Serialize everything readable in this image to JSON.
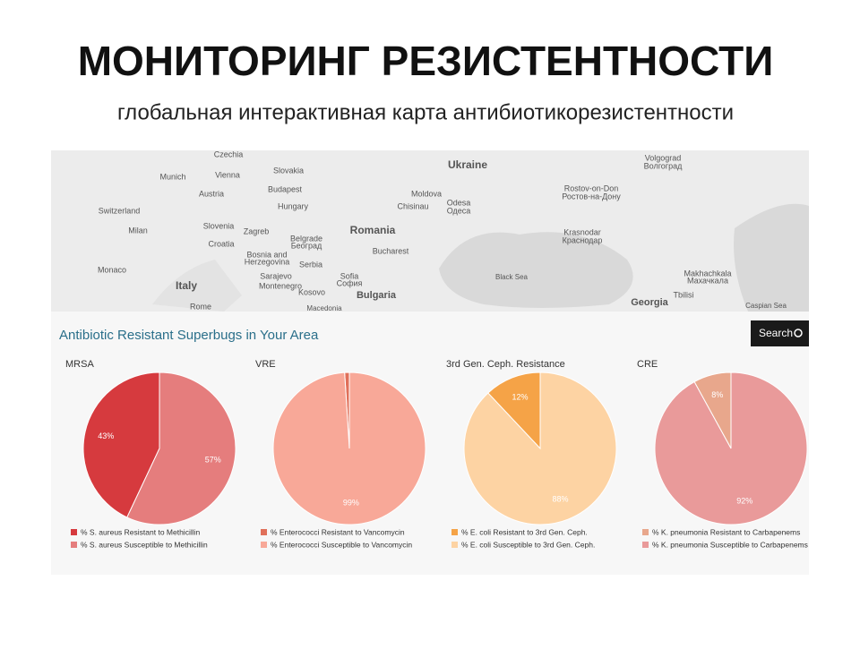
{
  "header": {
    "title": "МОНИТОРИНГ РЕЗИСТЕНТНОСТИ",
    "subtitle": "глобальная интерактивная карта антибиотикорезистентности"
  },
  "map": {
    "labels": [
      "Czechia",
      "Slovakia",
      "Ukraine",
      "Volgograd",
      "Волгоград",
      "Munich",
      "Vienna",
      "Austria",
      "Budapest",
      "Hungary",
      "Moldova",
      "Chisinau",
      "Odesa",
      "Одеса",
      "Rostov-on-Don",
      "Ростов-на-Дону",
      "Switzerland",
      "Slovenia",
      "Zagreb",
      "Croatia",
      "Romania",
      "Milan",
      "Belgrade",
      "Београд",
      "Bucharest",
      "Krasnodar",
      "Краснодар",
      "Bosnia and",
      "Herzegovina",
      "Serbia",
      "Monaco",
      "Sarajevo",
      "Italy",
      "Montenegro",
      "Sofia",
      "София",
      "Black Sea",
      "Makhachkala",
      "Махачкала",
      "Kosovo",
      "Bulgaria",
      "Tbilisi",
      "Georgia",
      "Rome",
      "Macedonia",
      "Caspian Sea"
    ]
  },
  "panel": {
    "title": "Antibiotic Resistant Superbugs in Your Area",
    "search": "Search"
  },
  "chart_data": [
    {
      "type": "pie",
      "title": "MRSA",
      "labels": [
        "% S. aureus Resistant to Methicillin",
        "% S. aureus Susceptible to Methicillin"
      ],
      "values": [
        43,
        57
      ],
      "value_labels": [
        "43%",
        "57%"
      ],
      "colors": [
        "#d63a3e",
        "#e57d7d"
      ]
    },
    {
      "type": "pie",
      "title": "VRE",
      "labels": [
        "% Enterococci Resistant to Vancomycin",
        "% Enterococci Susceptible to Vancomycin"
      ],
      "values": [
        1,
        99
      ],
      "value_labels": [
        null,
        "99%"
      ],
      "colors": [
        "#e0705a",
        "#f8a898"
      ]
    },
    {
      "type": "pie",
      "title": "3rd Gen. Ceph. Resistance",
      "labels": [
        "% E. coli Resistant to 3rd Gen. Ceph.",
        "% E. coli Susceptible to 3rd Gen. Ceph."
      ],
      "values": [
        12,
        88
      ],
      "value_labels": [
        "12%",
        "88%"
      ],
      "colors": [
        "#f5a347",
        "#fdd3a3"
      ]
    },
    {
      "type": "pie",
      "title": "CRE",
      "labels": [
        "% K. pneumonia Resistant to Carbapenems",
        "% K. pneumonia Susceptible to Carbapenems"
      ],
      "values": [
        8,
        92
      ],
      "value_labels": [
        "8%",
        "92%"
      ],
      "colors": [
        "#e8a78c",
        "#e99a9a"
      ]
    }
  ]
}
